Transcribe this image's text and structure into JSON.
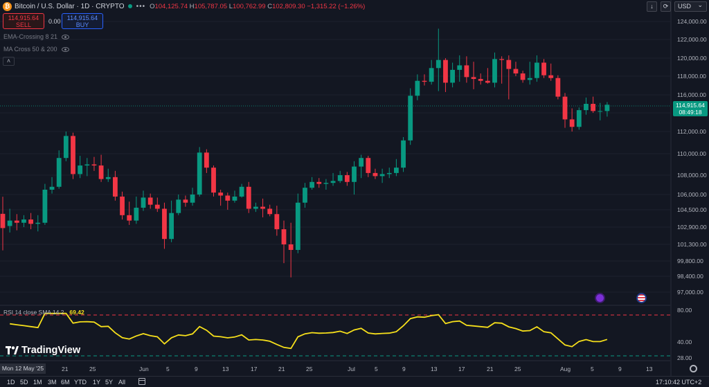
{
  "header": {
    "coin_symbol": "₿",
    "title": "Bitcoin / U.S. Dollar · 1D · CRYPTO",
    "menu_dots": "•••",
    "ohlc": {
      "o_label": "O",
      "o": "104,125.74",
      "h_label": "H",
      "h": "105,787.05",
      "l_label": "L",
      "l": "100,762.99",
      "c_label": "C",
      "c": "102,809.30",
      "chg": "−1,315.22 (−1.26%)"
    }
  },
  "trade": {
    "sell_price": "114,915.64",
    "sell_label": "SELL",
    "spread": "0.00",
    "buy_price": "114,915.64",
    "buy_label": "BUY"
  },
  "indicators": [
    {
      "label": "EMA-Crossing 8 21"
    },
    {
      "label": "MA Cross 50 & 200"
    }
  ],
  "toolbar": {
    "collapse_glyph": "˄",
    "download_glyph": "↓",
    "screenshot_glyph": "⟳",
    "currency": "USD",
    "currency_caret": "⌄"
  },
  "price_axis": {
    "labels": [
      "124,000.00",
      "122,000.00",
      "120,000.00",
      "118,000.00",
      "116,000.00",
      "114,000.00",
      "112,000.00",
      "110,000.00",
      "108,000.00",
      "106,000.00",
      "104,500.00",
      "102,900.00",
      "101,300.00",
      "99,800.00",
      "98,400.00",
      "97,000.00"
    ],
    "current_price": "114,915.64",
    "countdown": "08:49:18"
  },
  "rsi": {
    "label": "RSI 14 close SMA 14 2",
    "value": "69.42",
    "axis_labels": [
      "80.00",
      "40.00",
      "28.00"
    ]
  },
  "time_axis": {
    "crosshair_date": "Mon 12 May '25",
    "labels": [
      "21",
      "25",
      "Jun",
      "5",
      "9",
      "13",
      "17",
      "21",
      "25",
      "Jul",
      "5",
      "9",
      "13",
      "17",
      "21",
      "25",
      "Aug",
      "5",
      "9",
      "13"
    ]
  },
  "branding": {
    "logo_text": "TradingView"
  },
  "ranges": [
    "1D",
    "5D",
    "1M",
    "3M",
    "6M",
    "YTD",
    "1Y",
    "5Y",
    "All"
  ],
  "clock": "17:10:42 UTC+2",
  "colors": {
    "background": "#131722",
    "up": "#089981",
    "down": "#f23645",
    "rsi_line": "#f7e01b",
    "accent": "#2962ff"
  },
  "icons": [
    "bitcoin-icon",
    "eye-icon",
    "collapse-icon",
    "download-icon",
    "refresh-icon",
    "calendar-icon",
    "gear-icon",
    "lightning-icon",
    "us-flag-icon"
  ],
  "chart_data": {
    "type": "candlestick",
    "symbol": "BTCUSD",
    "interval": "1D",
    "ylim": [
      96000,
      125000
    ],
    "x": [
      "May 12",
      "May 13",
      "May 14",
      "May 15",
      "May 16",
      "May 17",
      "May 18",
      "May 19",
      "May 20",
      "May 21",
      "May 22",
      "May 23",
      "May 24",
      "May 25",
      "May 26",
      "May 27",
      "May 28",
      "May 29",
      "May 30",
      "May 31",
      "Jun 1",
      "Jun 2",
      "Jun 3",
      "Jun 4",
      "Jun 5",
      "Jun 6",
      "Jun 7",
      "Jun 8",
      "Jun 9",
      "Jun 10",
      "Jun 11",
      "Jun 12",
      "Jun 13",
      "Jun 14",
      "Jun 15",
      "Jun 16",
      "Jun 17",
      "Jun 18",
      "Jun 19",
      "Jun 20",
      "Jun 21",
      "Jun 22",
      "Jun 23",
      "Jun 24",
      "Jun 25",
      "Jun 26",
      "Jun 27",
      "Jun 28",
      "Jun 29",
      "Jun 30",
      "Jul 1",
      "Jul 2",
      "Jul 3",
      "Jul 4",
      "Jul 5",
      "Jul 6",
      "Jul 7",
      "Jul 8",
      "Jul 9",
      "Jul 10",
      "Jul 11",
      "Jul 12",
      "Jul 13",
      "Jul 14",
      "Jul 15",
      "Jul 16",
      "Jul 17",
      "Jul 18",
      "Jul 19",
      "Jul 20",
      "Jul 21",
      "Jul 22",
      "Jul 23",
      "Jul 24",
      "Jul 25",
      "Jul 26",
      "Jul 27",
      "Jul 28",
      "Jul 29",
      "Jul 30",
      "Jul 31",
      "Aug 1",
      "Aug 2",
      "Aug 3",
      "Aug 4",
      "Aug 5",
      "Aug 6"
    ],
    "open": [
      104125,
      103000,
      103500,
      103300,
      103600,
      103200,
      103300,
      106500,
      106800,
      109600,
      111600,
      108100,
      108900,
      109000,
      108900,
      107600,
      107800,
      105800,
      104000,
      103500,
      104700,
      105700,
      105000,
      104600,
      101800,
      104200,
      105500,
      105200,
      106000,
      110100,
      108700,
      106200,
      105900,
      105400,
      105800,
      106800,
      104600,
      104800,
      104600,
      104100,
      102700,
      101300,
      100800,
      105200,
      106700,
      107300,
      107100,
      107200,
      107400,
      108000,
      107300,
      108800,
      109600,
      108200,
      107900,
      108100,
      108200,
      108700,
      111200,
      115900,
      117500,
      117400,
      118900,
      119800,
      117300,
      118700,
      119200,
      117900,
      117700,
      117500,
      117300,
      119900,
      119800,
      118800,
      118300,
      117600,
      117800,
      119500,
      118100,
      117800,
      115800,
      113300,
      112500,
      114300,
      115000,
      114200,
      114200
    ],
    "close": [
      102809,
      103500,
      103300,
      103600,
      103200,
      103300,
      106500,
      106800,
      109600,
      111600,
      108100,
      108900,
      109000,
      108900,
      107600,
      107800,
      105800,
      104000,
      103500,
      104700,
      105700,
      105000,
      104600,
      101800,
      104200,
      105500,
      105200,
      106000,
      110100,
      108700,
      106200,
      105900,
      105400,
      105800,
      106800,
      104600,
      104800,
      104600,
      104100,
      102700,
      101300,
      100800,
      105200,
      106700,
      107300,
      107100,
      107200,
      107400,
      108000,
      107300,
      108800,
      109600,
      108200,
      107900,
      108100,
      108200,
      108700,
      111200,
      115900,
      117500,
      117400,
      118900,
      119800,
      117300,
      118700,
      119200,
      117900,
      117700,
      117500,
      117300,
      119900,
      119800,
      118800,
      118300,
      117600,
      117800,
      119500,
      118100,
      117800,
      115800,
      113300,
      112500,
      114300,
      115000,
      114200,
      114200,
      114900
    ],
    "high": [
      105787,
      104600,
      104100,
      104000,
      104200,
      104000,
      107100,
      107800,
      110300,
      112000,
      111900,
      109800,
      109600,
      109700,
      109900,
      108600,
      108400,
      106300,
      105300,
      105800,
      106400,
      106100,
      105700,
      105200,
      105400,
      106000,
      105900,
      106700,
      110600,
      110400,
      108900,
      106500,
      106200,
      106400,
      107100,
      107300,
      105200,
      105600,
      105000,
      104900,
      103500,
      103300,
      106100,
      107200,
      107800,
      107700,
      107600,
      108200,
      108400,
      108300,
      109300,
      109900,
      109800,
      108600,
      108600,
      108700,
      109500,
      111500,
      116700,
      118200,
      118200,
      119800,
      123200,
      120000,
      119500,
      120300,
      120200,
      119600,
      118300,
      118900,
      120600,
      120200,
      120300,
      119600,
      118600,
      119600,
      120300,
      119900,
      119400,
      118100,
      116200,
      114500,
      114600,
      115700,
      115800,
      115100,
      115200
    ],
    "low": [
      100763,
      102400,
      102600,
      102900,
      102700,
      102500,
      103100,
      106100,
      106600,
      109300,
      107600,
      107700,
      107900,
      108400,
      107300,
      107300,
      105400,
      103600,
      103100,
      103200,
      104400,
      104600,
      104300,
      100900,
      101500,
      104000,
      104800,
      104900,
      105800,
      108200,
      105800,
      104900,
      104500,
      105200,
      105700,
      104200,
      104300,
      103800,
      103900,
      102100,
      99600,
      98300,
      100500,
      104700,
      106500,
      106700,
      106500,
      106900,
      107200,
      106900,
      106000,
      107700,
      107800,
      107600,
      107200,
      107700,
      107900,
      108300,
      110800,
      115400,
      117000,
      117100,
      116400,
      116300,
      116800,
      117400,
      117300,
      116600,
      117100,
      117200,
      116800,
      117200,
      115500,
      118000,
      117300,
      117100,
      117400,
      117800,
      117500,
      115500,
      112400,
      112000,
      112200,
      113800,
      114000,
      113200,
      113600
    ]
  }
}
